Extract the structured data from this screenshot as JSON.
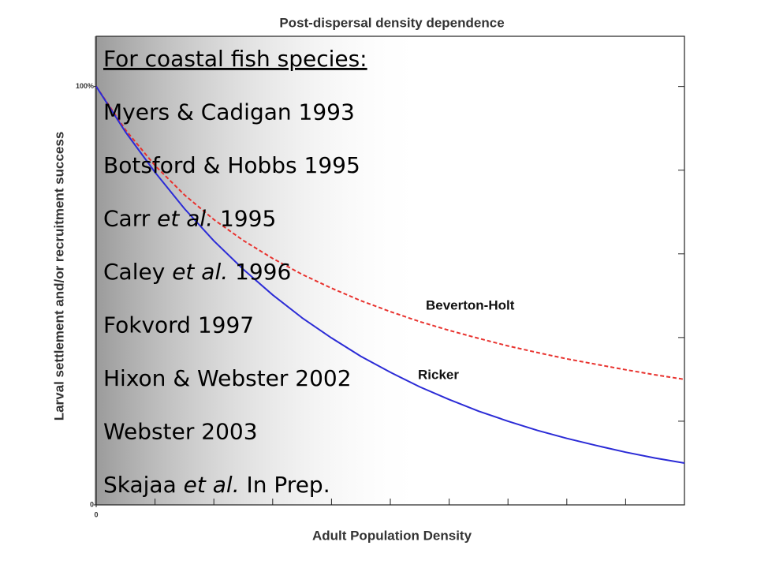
{
  "chart_data": {
    "type": "line",
    "title": "Post-dispersal density dependence",
    "y_label": "Larval settlement and/or recruitment success",
    "x_label": "Adult Population Density",
    "x": [
      0,
      0.5,
      1,
      1.5,
      2,
      2.5,
      3,
      3.5,
      4,
      4.5,
      5,
      5.5,
      6,
      6.5,
      7,
      7.5,
      8,
      8.5,
      9,
      9.5,
      10
    ],
    "series": [
      {
        "name": "Beverton-Holt",
        "color": "#e8322e",
        "dashed": true,
        "values": [
          100,
          89.6,
          81.1,
          74.1,
          68.2,
          63.2,
          58.9,
          55.1,
          51.8,
          48.8,
          46.2,
          43.8,
          41.7,
          39.8,
          38.0,
          36.4,
          34.9,
          33.6,
          32.3,
          31.1,
          30.0
        ]
      },
      {
        "name": "Ricker",
        "color": "#2b2bd6",
        "dashed": false,
        "values": [
          100,
          89.1,
          79.5,
          70.8,
          63.1,
          56.3,
          50.2,
          44.7,
          39.9,
          35.5,
          31.7,
          28.2,
          25.2,
          22.4,
          20.0,
          17.8,
          15.9,
          14.2,
          12.6,
          11.2,
          10.0
        ]
      }
    ],
    "xlim": [
      0,
      10
    ],
    "ylim": [
      0,
      112
    ],
    "xticks": [
      0
    ],
    "xminor": [
      1,
      2,
      3,
      4,
      5,
      6,
      7,
      8,
      9,
      10
    ],
    "yticks": [
      0,
      {
        "value": 100,
        "label": "100%"
      }
    ],
    "yminor": [
      20,
      40,
      60,
      80,
      100
    ],
    "overlay": {
      "heading": "For coastal fish species:",
      "references": [
        [
          {
            "text": "Myers & Cadigan 1993"
          }
        ],
        [
          {
            "text": "Botsford & Hobbs 1995"
          }
        ],
        [
          {
            "text": "Carr "
          },
          {
            "text": "et al.",
            "italic": true
          },
          {
            "text": " 1995"
          }
        ],
        [
          {
            "text": "Caley "
          },
          {
            "text": "et al.",
            "italic": true
          },
          {
            "text": " 1996"
          }
        ],
        [
          {
            "text": "Fokvord 1997"
          }
        ],
        [
          {
            "text": "Hixon & Webster 2002"
          }
        ],
        [
          {
            "text": "Webster 2003"
          }
        ],
        [
          {
            "text": "Skajaa "
          },
          {
            "text": "et al.",
            "italic": true
          },
          {
            "text": " In Prep."
          }
        ]
      ]
    }
  }
}
